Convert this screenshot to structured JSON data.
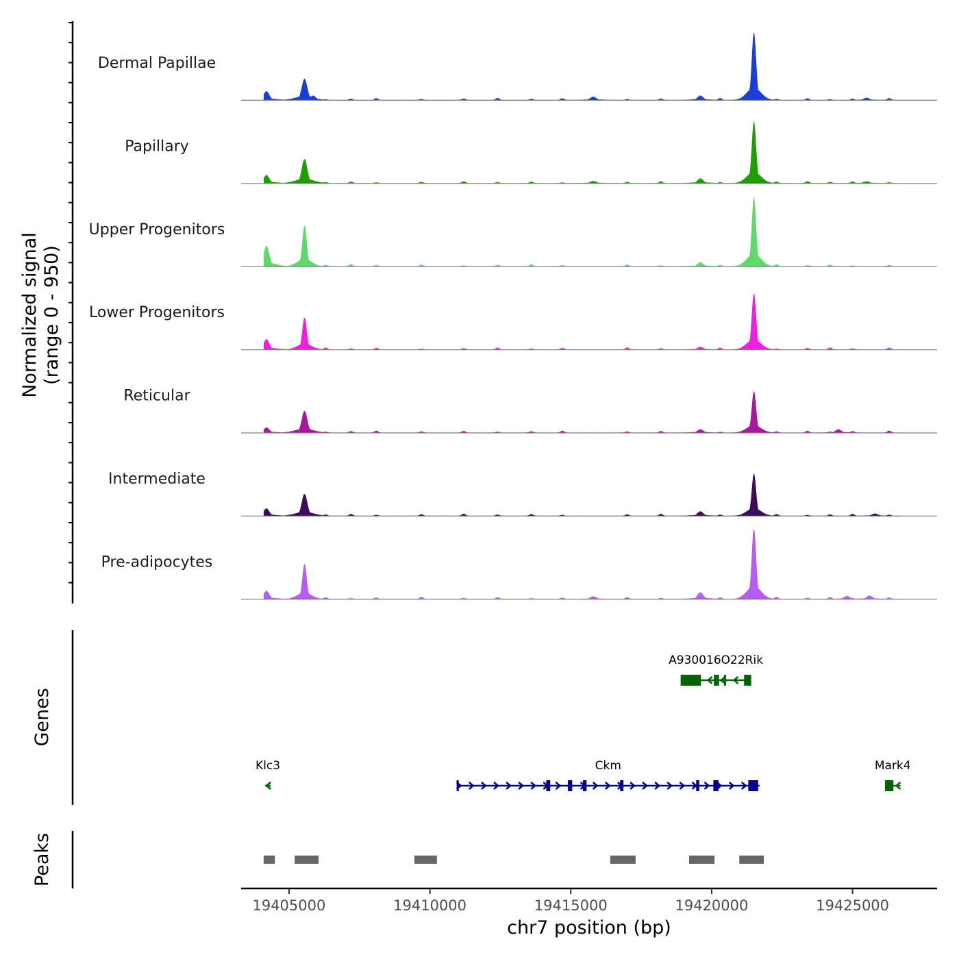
{
  "chart_data": {
    "type": "area",
    "title": "",
    "xlabel": "chr7 position (bp)",
    "ylabel": "Normalized signal",
    "ylabel_range": "(range 0 - 950)",
    "y_range": [
      0,
      950
    ],
    "xlim": [
      19403300,
      19428000
    ],
    "x_ticks": [
      19405000,
      19410000,
      19415000,
      19420000,
      19425000
    ],
    "x_tick_labels": [
      "19405000",
      "19410000",
      "19415000",
      "19420000",
      "19425000"
    ],
    "signal_extent": [
      19404100,
      19426700
    ],
    "series": [
      {
        "name": "Dermal Papillae",
        "color": "#1b3fd6",
        "peaks": [
          {
            "x": 19404200,
            "h": 120
          },
          {
            "x": 19405550,
            "h": 290
          },
          {
            "x": 19405850,
            "h": 60
          },
          {
            "x": 19415800,
            "h": 45
          },
          {
            "x": 19419600,
            "h": 60
          },
          {
            "x": 19421500,
            "h": 930
          },
          {
            "x": 19425500,
            "h": 30
          }
        ]
      },
      {
        "name": "Papillary",
        "color": "#1e9e00",
        "peaks": [
          {
            "x": 19404200,
            "h": 110
          },
          {
            "x": 19405550,
            "h": 330
          },
          {
            "x": 19415800,
            "h": 30
          },
          {
            "x": 19419600,
            "h": 65
          },
          {
            "x": 19421500,
            "h": 850
          },
          {
            "x": 19425500,
            "h": 25
          }
        ]
      },
      {
        "name": "Upper Progenitors",
        "color": "#5ed96a",
        "peaks": [
          {
            "x": 19404200,
            "h": 280
          },
          {
            "x": 19405550,
            "h": 560
          },
          {
            "x": 19419600,
            "h": 55
          },
          {
            "x": 19421500,
            "h": 950
          }
        ]
      },
      {
        "name": "Lower Progenitors",
        "color": "#f01ee0",
        "peaks": [
          {
            "x": 19404200,
            "h": 140
          },
          {
            "x": 19405550,
            "h": 440
          },
          {
            "x": 19419600,
            "h": 35
          },
          {
            "x": 19421500,
            "h": 770
          }
        ]
      },
      {
        "name": "Reticular",
        "color": "#a8179c",
        "peaks": [
          {
            "x": 19404200,
            "h": 70
          },
          {
            "x": 19405550,
            "h": 300
          },
          {
            "x": 19419600,
            "h": 45
          },
          {
            "x": 19421500,
            "h": 570
          },
          {
            "x": 19424500,
            "h": 45
          }
        ]
      },
      {
        "name": "Intermediate",
        "color": "#3a0c5a",
        "peaks": [
          {
            "x": 19404200,
            "h": 100
          },
          {
            "x": 19405550,
            "h": 300
          },
          {
            "x": 19419600,
            "h": 60
          },
          {
            "x": 19421500,
            "h": 580
          },
          {
            "x": 19425800,
            "h": 30
          }
        ]
      },
      {
        "name": "Pre-adipocytes",
        "color": "#b65cf5",
        "peaks": [
          {
            "x": 19404200,
            "h": 110
          },
          {
            "x": 19405550,
            "h": 480
          },
          {
            "x": 19415800,
            "h": 35
          },
          {
            "x": 19419600,
            "h": 90
          },
          {
            "x": 19421500,
            "h": 980
          },
          {
            "x": 19424800,
            "h": 40
          },
          {
            "x": 19425600,
            "h": 45
          }
        ]
      }
    ],
    "genes_track_title": "Genes",
    "genes": [
      {
        "name": "A930016O22Rik",
        "row": 1,
        "strand": "-",
        "color": "#006400",
        "start": 19418900,
        "end": 19421400,
        "exons": [
          [
            19418900,
            19419620
          ],
          [
            19420080,
            19420260
          ],
          [
            19420440,
            19420470
          ],
          [
            19421150,
            19421400
          ]
        ]
      },
      {
        "name": "Klc3",
        "row": 2,
        "strand": "-",
        "color": "#006400",
        "start": 19404150,
        "end": 19404350,
        "exons": []
      },
      {
        "name": "Ckm",
        "row": 2,
        "strand": "+",
        "color": "#00008b",
        "start": 19410950,
        "end": 19421700,
        "exons": [
          [
            19410950,
            19411010
          ],
          [
            19414130,
            19414270
          ],
          [
            19414900,
            19415050
          ],
          [
            19415430,
            19415560
          ],
          [
            19416750,
            19416870
          ],
          [
            19419450,
            19419560
          ],
          [
            19420060,
            19420240
          ],
          [
            19421300,
            19421650
          ]
        ]
      },
      {
        "name": "Mark4",
        "row": 2,
        "strand": "-",
        "color": "#006400",
        "start": 19426150,
        "end": 19426700,
        "exons": [
          [
            19426150,
            19426450
          ]
        ]
      }
    ],
    "peaks_track_title": "Peaks",
    "peak_regions": [
      [
        19404100,
        19404500
      ],
      [
        19405200,
        19406050
      ],
      [
        19409450,
        19410250
      ],
      [
        19416400,
        19417300
      ],
      [
        19419200,
        19420100
      ],
      [
        19420980,
        19421850
      ]
    ]
  }
}
